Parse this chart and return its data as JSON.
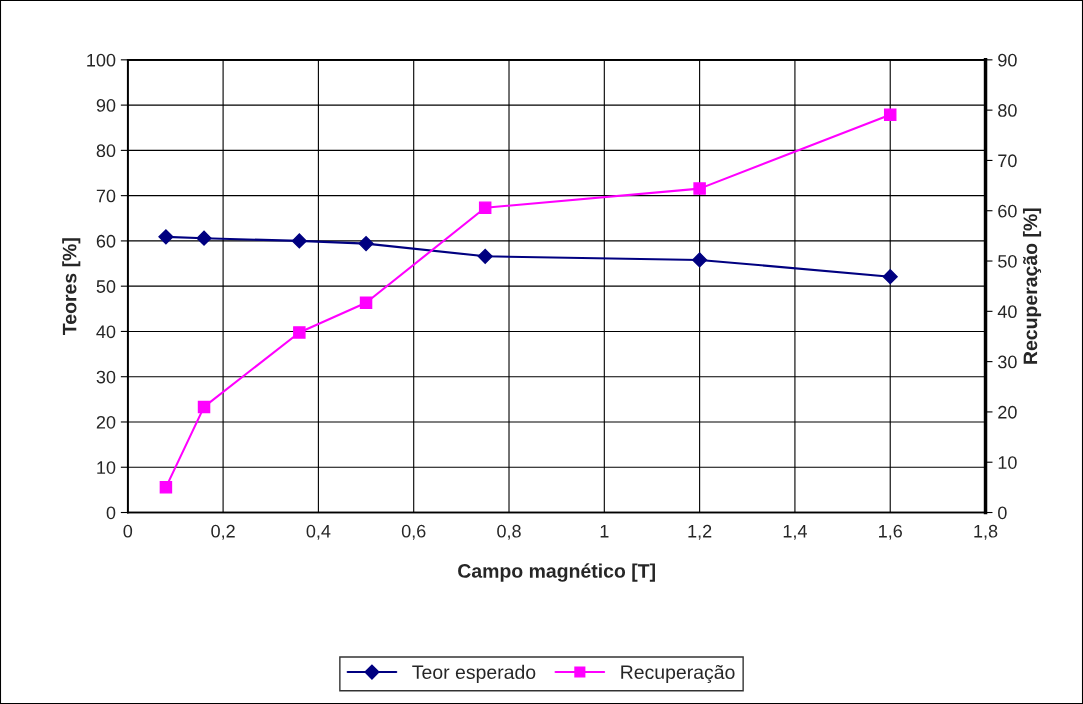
{
  "chart_data": {
    "type": "line",
    "xlabel": "Campo magnético [T]",
    "ylabel": "Teores [%]",
    "y2label": "Recuperação [%]",
    "x": [
      0.08,
      0.16,
      0.36,
      0.5,
      0.75,
      1.2,
      1.6
    ],
    "series": [
      {
        "name": "Teor esperado",
        "color": "#000080",
        "marker": "diamond",
        "values": [
          60.9,
          60.6,
          60.0,
          59.4,
          56.6,
          55.8,
          52.1
        ]
      },
      {
        "name": "Recuperação",
        "color": "#ff00ff",
        "marker": "square",
        "axis": "y2",
        "values": [
          5.0,
          21.0,
          35.8,
          41.7,
          60.6,
          64.4,
          79.1
        ]
      }
    ],
    "xlim": [
      0,
      1.8
    ],
    "xticks": [
      0,
      {
        "value": 0.2,
        "label": "0,2"
      },
      {
        "value": 0.4,
        "label": "0,4"
      },
      {
        "value": 0.6,
        "label": "0,6"
      },
      {
        "value": 0.8,
        "label": "0,8"
      },
      1,
      {
        "value": 1.2,
        "label": "1,2"
      },
      {
        "value": 1.4,
        "label": "1,4"
      },
      {
        "value": 1.6,
        "label": "1,6"
      },
      {
        "value": 1.8,
        "label": "1,8"
      }
    ],
    "ylim": [
      0,
      100
    ],
    "yticks": [
      0,
      10,
      20,
      30,
      40,
      50,
      60,
      70,
      80,
      90,
      100
    ],
    "y2lim": [
      0,
      90
    ],
    "y2ticks": [
      0,
      10,
      20,
      30,
      40,
      50,
      60,
      70,
      80,
      90
    ],
    "grid": true,
    "legend": "bottom",
    "line_style": "solid"
  }
}
